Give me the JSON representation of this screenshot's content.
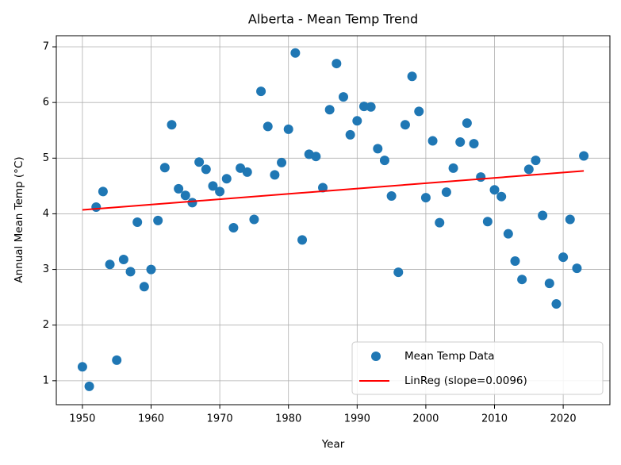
{
  "chart_data": {
    "type": "scatter",
    "title": "Alberta - Mean Temp Trend",
    "x_label": "Year",
    "y_label": "Annual Mean Temp (°C)",
    "x": [
      1950,
      1951,
      1952,
      1953,
      1954,
      1955,
      1956,
      1957,
      1958,
      1959,
      1960,
      1961,
      1962,
      1963,
      1964,
      1965,
      1966,
      1967,
      1968,
      1969,
      1970,
      1971,
      1972,
      1973,
      1974,
      1975,
      1976,
      1977,
      1978,
      1979,
      1980,
      1981,
      1982,
      1983,
      1984,
      1985,
      1986,
      1987,
      1988,
      1989,
      1990,
      1991,
      1992,
      1993,
      1994,
      1995,
      1996,
      1997,
      1998,
      1999,
      2000,
      2001,
      2002,
      2003,
      2004,
      2005,
      2006,
      2007,
      2008,
      2009,
      2010,
      2011,
      2012,
      2013,
      2014,
      2015,
      2016,
      2017,
      2018,
      2019,
      2020,
      2021,
      2022,
      2023
    ],
    "series": [
      {
        "name": "Mean Temp Data",
        "type": "scatter",
        "color": "#1f77b4",
        "values": [
          1.25,
          0.9,
          4.12,
          4.4,
          3.09,
          1.37,
          3.18,
          2.96,
          3.85,
          2.69,
          3.0,
          3.88,
          4.83,
          5.6,
          4.45,
          4.33,
          4.2,
          4.93,
          4.8,
          4.5,
          4.4,
          4.63,
          3.75,
          4.82,
          4.75,
          3.9,
          6.2,
          5.57,
          4.7,
          4.92,
          5.52,
          6.89,
          3.53,
          5.07,
          5.03,
          4.47,
          5.87,
          6.7,
          6.1,
          5.42,
          5.67,
          5.93,
          5.92,
          5.17,
          4.96,
          4.32,
          2.95,
          5.6,
          6.47,
          5.84,
          4.29,
          5.31,
          3.84,
          4.39,
          4.82,
          5.29,
          5.63,
          5.26,
          4.66,
          3.86,
          4.43,
          4.31,
          3.64,
          3.15,
          2.82,
          4.8,
          4.96,
          3.97,
          2.75,
          2.38,
          3.22,
          3.9,
          3.02,
          5.04
        ]
      },
      {
        "name": "LinReg (slope=0.0096)",
        "type": "line",
        "color": "#ff0000",
        "x": [
          1950,
          2023
        ],
        "values": [
          4.07,
          4.77
        ]
      }
    ],
    "xlim": [
      1946.2,
      2026.8
    ],
    "ylim": [
      0.57,
      7.2
    ],
    "xticks": [
      1950,
      1960,
      1970,
      1980,
      1990,
      2000,
      2010,
      2020
    ],
    "yticks": [
      1,
      2,
      3,
      4,
      5,
      6,
      7
    ],
    "grid": true,
    "legend": "lower right"
  }
}
